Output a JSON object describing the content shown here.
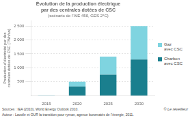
{
  "chart_data": {
    "type": "bar",
    "title": "Évolution de la production électrique\npar des centrales dotées de CSC",
    "subtitle": "(scénario de l’AIE 450, GES 2°C)",
    "ylabel": "Production d’électricité par des\ncentrales dotées de CSC (TWh/an)",
    "categories": [
      "2015",
      "2020",
      "2025",
      "2030"
    ],
    "series": [
      {
        "name": "Charbon\navec CSC",
        "color": "#1a7f8e",
        "values": [
          5,
          330,
          750,
          1300
        ]
      },
      {
        "name": "Gaz\navec CSC",
        "color": "#7fd4e0",
        "values": [
          5,
          170,
          650,
          1200
        ]
      }
    ],
    "stacked": true,
    "ylim": [
      0,
      2700
    ],
    "yticks": [
      500,
      {
        "value": 1000,
        "label": "1 000"
      },
      {
        "value": 1500,
        "label": "1 500"
      },
      {
        "value": 2000,
        "label": "2 000"
      },
      {
        "value": 2500,
        "label": "2 500"
      }
    ],
    "grid": true,
    "legend": "right",
    "annotations": [
      "Sources : IEA (2010), World Energy Outlook 2010.",
      "Auteur : Lavoile et OUR la transition pour ryman, agence buromatés de l’énergie, 2011.",
      "© Le réveilleur"
    ]
  }
}
